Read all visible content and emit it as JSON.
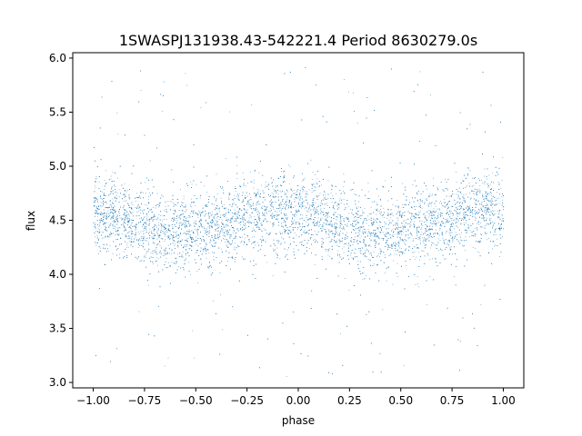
{
  "chart_data": {
    "type": "scatter",
    "title": "1SWASPJ131938.43-542221.4 Period 8630279.0s",
    "xlabel": "phase",
    "ylabel": "flux",
    "xlim": [
      -1.1,
      1.1
    ],
    "ylim": [
      2.95,
      6.05
    ],
    "x_ticks": [
      -1.0,
      -0.75,
      -0.5,
      -0.25,
      0.0,
      0.25,
      0.5,
      0.75,
      1.0
    ],
    "x_tick_labels": [
      "−1.00",
      "−0.75",
      "−0.50",
      "−0.25",
      "0.00",
      "0.25",
      "0.50",
      "0.75",
      "1.00"
    ],
    "y_ticks": [
      3.0,
      3.5,
      4.0,
      4.5,
      5.0,
      5.5,
      6.0
    ],
    "y_tick_labels": [
      "3.0",
      "3.5",
      "4.0",
      "4.5",
      "5.0",
      "5.5",
      "6.0"
    ],
    "grid": false,
    "marker_color": "#1f77b4",
    "series": [
      {
        "phase_range": [
          -1.0,
          1.0
        ],
        "baseline": [
          [
            -1.0,
            4.55
          ],
          [
            -0.875,
            4.55
          ],
          [
            -0.75,
            4.45
          ],
          [
            -0.7,
            4.4
          ],
          [
            -0.625,
            4.4
          ],
          [
            -0.5,
            4.4
          ],
          [
            -0.375,
            4.45
          ],
          [
            -0.25,
            4.52
          ],
          [
            -0.125,
            4.6
          ],
          [
            0.0,
            4.55
          ],
          [
            0.125,
            4.52
          ],
          [
            0.25,
            4.42
          ],
          [
            0.375,
            4.42
          ],
          [
            0.5,
            4.38
          ],
          [
            0.625,
            4.45
          ],
          [
            0.75,
            4.5
          ],
          [
            0.875,
            4.62
          ],
          [
            1.0,
            4.58
          ]
        ],
        "core_spread": 0.18,
        "outlier_range": [
          3.05,
          5.95
        ]
      }
    ]
  }
}
